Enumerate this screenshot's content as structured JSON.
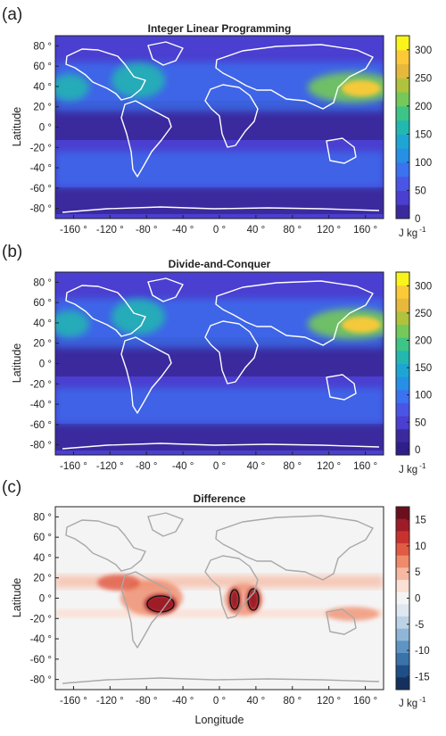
{
  "chart_data": [
    {
      "panel_label": "(a)",
      "type": "heatmap",
      "title": "Integer Linear Programming",
      "xlabel": "",
      "ylabel": "Latitude",
      "x_ticks": [
        "-160 °",
        "-120 °",
        "-80 °",
        "-40 °",
        "0 °",
        "40 °",
        "80 °",
        "120 °",
        "160 °"
      ],
      "y_ticks": [
        "80 °",
        "60 °",
        "40 °",
        "20 °",
        "0 °",
        "-20 °",
        "-40 °",
        "-60 °",
        "-80 °"
      ],
      "xlim": [
        -180,
        180
      ],
      "ylim": [
        -90,
        90
      ],
      "colorbar": {
        "ticks": [
          "0",
          "50",
          "100",
          "150",
          "200",
          "250",
          "300"
        ],
        "range": [
          0,
          325
        ],
        "unit_base": "J kg",
        "unit_exp": "-1",
        "colors": [
          "#3b2a9e",
          "#4a3fd0",
          "#4a55e6",
          "#3b72f0",
          "#2590e6",
          "#1da6d4",
          "#22b8b0",
          "#3dc487",
          "#74c95a",
          "#b0c33c",
          "#e6b93c",
          "#fcca38",
          "#f9f51a"
        ]
      },
      "coastline_color": "#ffffff"
    },
    {
      "panel_label": "(b)",
      "type": "heatmap",
      "title": "Divide-and-Conquer",
      "xlabel": "",
      "ylabel": "Latitude",
      "x_ticks": [
        "-160 °",
        "-120 °",
        "-80 °",
        "-40 °",
        "0 °",
        "40 °",
        "80 °",
        "120 °",
        "160 °"
      ],
      "y_ticks": [
        "80 °",
        "60 °",
        "40 °",
        "20 °",
        "0 °",
        "-20 °",
        "-40 °",
        "-60 °",
        "-80 °"
      ],
      "xlim": [
        -180,
        180
      ],
      "ylim": [
        -90,
        90
      ],
      "colorbar": {
        "ticks": [
          "0",
          "50",
          "100",
          "150",
          "200",
          "250",
          "300"
        ],
        "range": [
          -10,
          325
        ],
        "unit_base": "J kg",
        "unit_exp": "-1",
        "colors": [
          "#2e1f8a",
          "#3b2a9e",
          "#4a3fd0",
          "#4a55e6",
          "#3b72f0",
          "#2590e6",
          "#1da6d4",
          "#22b8b0",
          "#3dc487",
          "#74c95a",
          "#b0c33c",
          "#e6b93c",
          "#fcca38",
          "#f9f51a"
        ]
      },
      "coastline_color": "#ffffff"
    },
    {
      "panel_label": "(c)",
      "type": "heatmap",
      "title": "Difference",
      "xlabel": "Longitude",
      "ylabel": "Latitude",
      "x_ticks": [
        "-160 °",
        "-120 °",
        "-80 °",
        "-40 °",
        "0 °",
        "40 °",
        "80 °",
        "120 °",
        "160 °"
      ],
      "y_ticks": [
        "80 °",
        "60 °",
        "40 °",
        "20 °",
        "0 °",
        "-20 °",
        "-40 °",
        "-60 °",
        "-80 °"
      ],
      "xlim": [
        -180,
        180
      ],
      "ylim": [
        -90,
        90
      ],
      "colorbar": {
        "ticks": [
          "15",
          "10",
          "5",
          "0",
          "-5",
          "-10",
          "-15"
        ],
        "range": [
          -17.5,
          17.5
        ],
        "unit_base": "J kg",
        "unit_exp": "-1",
        "colors": [
          "#6b0f1e",
          "#9e1b28",
          "#c8322e",
          "#e05a44",
          "#ef8a6b",
          "#f6b8a0",
          "#fbe0d4",
          "#f4f4f4",
          "#dfe7f0",
          "#bcd3e6",
          "#8fb6d8",
          "#5e95c4",
          "#3a73aa",
          "#1e4f86",
          "#14305e"
        ]
      },
      "coastline_color": "#a8a8a8"
    }
  ]
}
